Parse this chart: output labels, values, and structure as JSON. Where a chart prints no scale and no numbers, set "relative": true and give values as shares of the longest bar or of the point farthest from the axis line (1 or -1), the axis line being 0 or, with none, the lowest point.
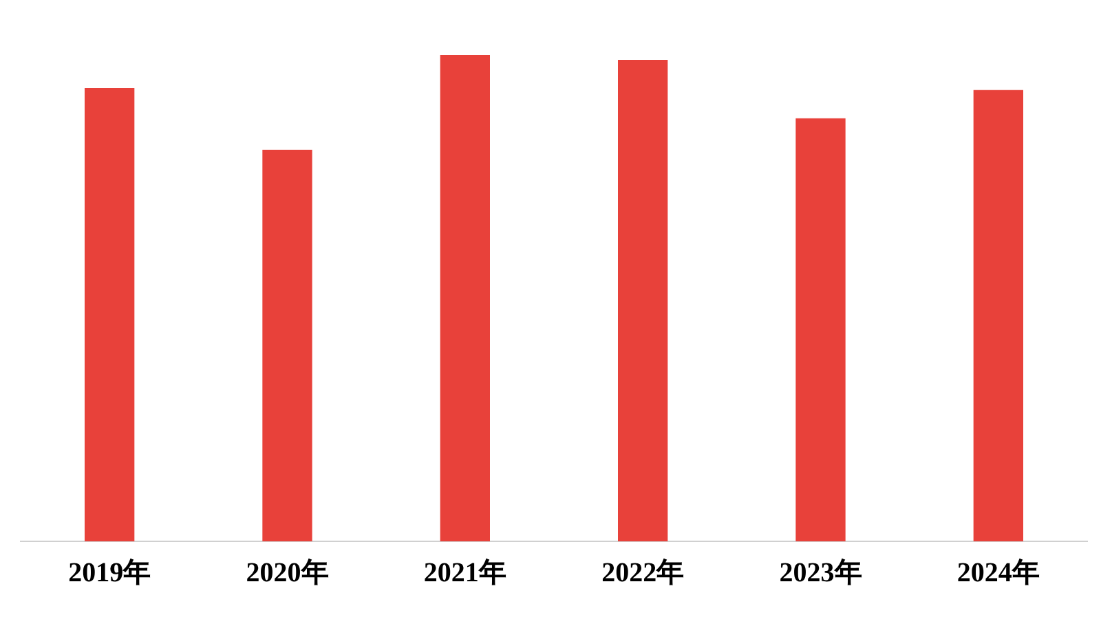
{
  "chart_data": {
    "type": "bar",
    "relative": true,
    "categories": [
      "2019年",
      "2020年",
      "2021年",
      "2022年",
      "2023年",
      "2024年"
    ],
    "values": [
      0.932,
      0.805,
      1,
      0.99,
      0.87,
      0.928
    ],
    "color": "#e8413a",
    "legend": false
  }
}
